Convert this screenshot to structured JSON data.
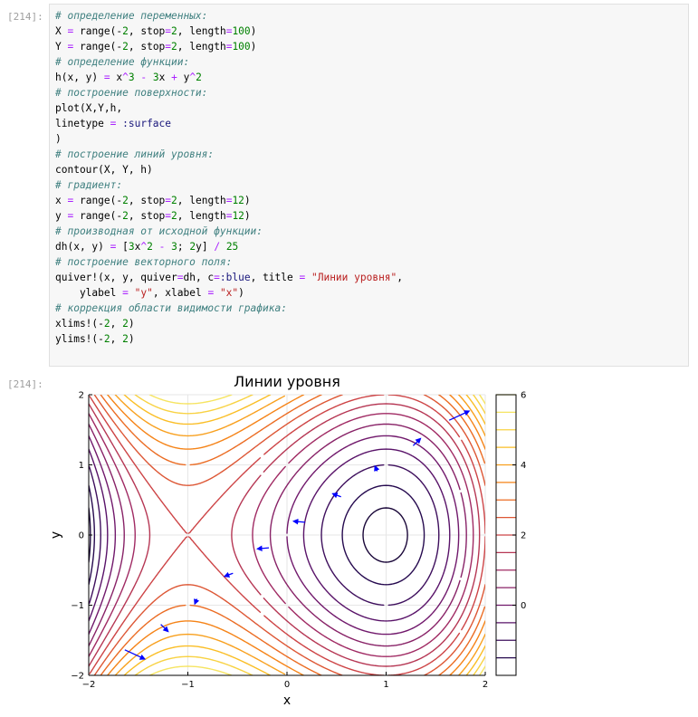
{
  "cells": {
    "in_prompt": "[214]:",
    "out_prompt": "[214]:"
  },
  "code": [
    [
      {
        "t": "# определение переменных:",
        "c": "c"
      }
    ],
    [
      {
        "t": "X "
      },
      {
        "t": "=",
        "c": "op"
      },
      {
        "t": " range(-"
      },
      {
        "t": "2",
        "c": "num"
      },
      {
        "t": ", stop"
      },
      {
        "t": "=",
        "c": "op"
      },
      {
        "t": "2",
        "c": "num"
      },
      {
        "t": ", length"
      },
      {
        "t": "=",
        "c": "op"
      },
      {
        "t": "100",
        "c": "num"
      },
      {
        "t": ")"
      }
    ],
    [
      {
        "t": "Y "
      },
      {
        "t": "=",
        "c": "op"
      },
      {
        "t": " range(-"
      },
      {
        "t": "2",
        "c": "num"
      },
      {
        "t": ", stop"
      },
      {
        "t": "=",
        "c": "op"
      },
      {
        "t": "2",
        "c": "num"
      },
      {
        "t": ", length"
      },
      {
        "t": "=",
        "c": "op"
      },
      {
        "t": "100",
        "c": "num"
      },
      {
        "t": ")"
      }
    ],
    [
      {
        "t": "# определение функции:",
        "c": "c"
      }
    ],
    [
      {
        "t": "h(x, y) "
      },
      {
        "t": "=",
        "c": "op"
      },
      {
        "t": " x"
      },
      {
        "t": "^",
        "c": "op"
      },
      {
        "t": "3",
        "c": "num"
      },
      {
        "t": " "
      },
      {
        "t": "-",
        "c": "op"
      },
      {
        "t": " "
      },
      {
        "t": "3",
        "c": "num"
      },
      {
        "t": "x "
      },
      {
        "t": "+",
        "c": "op"
      },
      {
        "t": " y"
      },
      {
        "t": "^",
        "c": "op"
      },
      {
        "t": "2",
        "c": "num"
      }
    ],
    [
      {
        "t": "# построение поверхности:",
        "c": "c"
      }
    ],
    [
      {
        "t": "plot(X,Y,h,"
      }
    ],
    [
      {
        "t": "linetype "
      },
      {
        "t": "=",
        "c": "op"
      },
      {
        "t": " "
      },
      {
        "t": ":surface",
        "c": "sym"
      }
    ],
    [
      {
        "t": ")"
      }
    ],
    [
      {
        "t": "# построение линий уровня:",
        "c": "c"
      }
    ],
    [
      {
        "t": "contour(X, Y, h)"
      }
    ],
    [
      {
        "t": "# градиент:",
        "c": "c"
      }
    ],
    [
      {
        "t": "x "
      },
      {
        "t": "=",
        "c": "op"
      },
      {
        "t": " range(-"
      },
      {
        "t": "2",
        "c": "num"
      },
      {
        "t": ", stop"
      },
      {
        "t": "=",
        "c": "op"
      },
      {
        "t": "2",
        "c": "num"
      },
      {
        "t": ", length"
      },
      {
        "t": "=",
        "c": "op"
      },
      {
        "t": "12",
        "c": "num"
      },
      {
        "t": ")"
      }
    ],
    [
      {
        "t": "y "
      },
      {
        "t": "=",
        "c": "op"
      },
      {
        "t": " range(-"
      },
      {
        "t": "2",
        "c": "num"
      },
      {
        "t": ", stop"
      },
      {
        "t": "=",
        "c": "op"
      },
      {
        "t": "2",
        "c": "num"
      },
      {
        "t": ", length"
      },
      {
        "t": "=",
        "c": "op"
      },
      {
        "t": "12",
        "c": "num"
      },
      {
        "t": ")"
      }
    ],
    [
      {
        "t": "# производная от исходной функции:",
        "c": "c"
      }
    ],
    [
      {
        "t": "dh(x, y) "
      },
      {
        "t": "=",
        "c": "op"
      },
      {
        "t": " ["
      },
      {
        "t": "3",
        "c": "num"
      },
      {
        "t": "x"
      },
      {
        "t": "^",
        "c": "op"
      },
      {
        "t": "2",
        "c": "num"
      },
      {
        "t": " "
      },
      {
        "t": "-",
        "c": "op"
      },
      {
        "t": " "
      },
      {
        "t": "3",
        "c": "num"
      },
      {
        "t": "; "
      },
      {
        "t": "2",
        "c": "num"
      },
      {
        "t": "y] "
      },
      {
        "t": "/",
        "c": "op"
      },
      {
        "t": " "
      },
      {
        "t": "25",
        "c": "num"
      }
    ],
    [
      {
        "t": "# построение векторного поля:",
        "c": "c"
      }
    ],
    [
      {
        "t": "quiver!(x, y, quiver"
      },
      {
        "t": "=",
        "c": "op"
      },
      {
        "t": "dh, c"
      },
      {
        "t": "=",
        "c": "op"
      },
      {
        "t": ":blue",
        "c": "sym"
      },
      {
        "t": ", title "
      },
      {
        "t": "=",
        "c": "op"
      },
      {
        "t": " "
      },
      {
        "t": "\"Линии уровня\"",
        "c": "str"
      },
      {
        "t": ","
      }
    ],
    [
      {
        "t": "    ylabel "
      },
      {
        "t": "=",
        "c": "op"
      },
      {
        "t": " "
      },
      {
        "t": "\"y\"",
        "c": "str"
      },
      {
        "t": ", xlabel "
      },
      {
        "t": "=",
        "c": "op"
      },
      {
        "t": " "
      },
      {
        "t": "\"x\"",
        "c": "str"
      },
      {
        "t": ")"
      }
    ],
    [
      {
        "t": "# коррекция области видимости графика:",
        "c": "c"
      }
    ],
    [
      {
        "t": "xlims!(-"
      },
      {
        "t": "2",
        "c": "num"
      },
      {
        "t": ", "
      },
      {
        "t": "2",
        "c": "num"
      },
      {
        "t": ")"
      }
    ],
    [
      {
        "t": "ylims!(-"
      },
      {
        "t": "2",
        "c": "num"
      },
      {
        "t": ", "
      },
      {
        "t": "2",
        "c": "num"
      },
      {
        "t": ")"
      }
    ]
  ],
  "chart_data": {
    "type": "contour",
    "title": "Линии уровня",
    "xlabel": "x",
    "ylabel": "y",
    "xlim": [
      -2,
      2
    ],
    "ylim": [
      -2,
      2
    ],
    "xticks": [
      "−2",
      "−1",
      "0",
      "1",
      "2"
    ],
    "yticks": [
      "−2",
      "−1",
      "0",
      "1",
      "2"
    ],
    "function": "x^3 - 3x + y^2",
    "levels": [
      -1.85,
      -1.5,
      -1.0,
      -0.5,
      0.0,
      0.5,
      1.0,
      1.5,
      2.0,
      2.5,
      3.0,
      3.5,
      4.0,
      4.5,
      5.0,
      5.5,
      6.0
    ],
    "colorbar": {
      "range": [
        -2,
        6
      ],
      "ticks": [
        "6",
        "4",
        "2",
        "0"
      ],
      "tick_values": [
        6,
        4,
        2,
        0
      ]
    },
    "grid": true,
    "quiver": {
      "color": "#0000ff",
      "arrows": [
        {
          "x": -1.636,
          "y": -1.636,
          "u": 0.201,
          "v": -0.131
        },
        {
          "x": -1.273,
          "y": -1.273,
          "u": 0.074,
          "v": -0.102
        },
        {
          "x": -0.909,
          "y": -0.909,
          "u": -0.021,
          "v": -0.073
        },
        {
          "x": -0.545,
          "y": -0.545,
          "u": -0.084,
          "v": -0.044
        },
        {
          "x": -0.182,
          "y": -0.182,
          "u": -0.116,
          "v": -0.015
        },
        {
          "x": 0.182,
          "y": 0.182,
          "u": -0.116,
          "v": 0.015
        },
        {
          "x": 0.545,
          "y": 0.545,
          "u": -0.084,
          "v": 0.044
        },
        {
          "x": 0.909,
          "y": 0.909,
          "u": -0.021,
          "v": 0.073
        },
        {
          "x": 1.273,
          "y": 1.273,
          "u": 0.074,
          "v": 0.102
        },
        {
          "x": 1.636,
          "y": 1.636,
          "u": 0.201,
          "v": 0.131
        }
      ]
    }
  }
}
